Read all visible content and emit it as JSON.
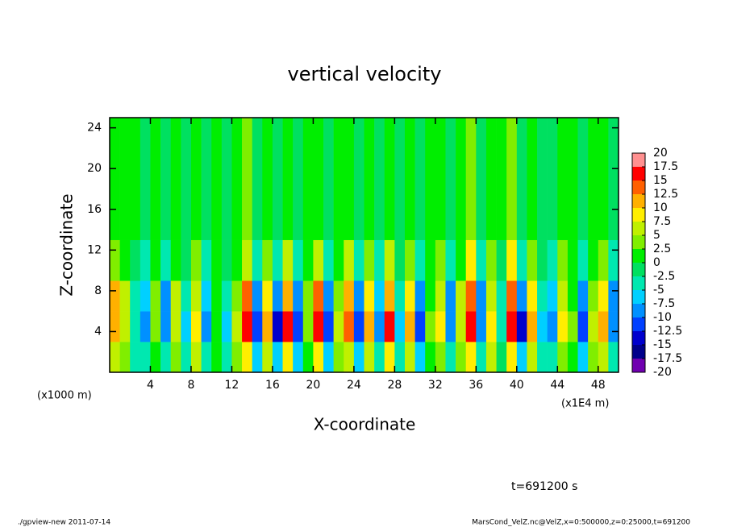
{
  "chart_data": {
    "type": "heatmap",
    "title": "vertical velocity",
    "xlabel": "X-coordinate",
    "ylabel": "Z-coordinate",
    "y_units": "(x1000 m)",
    "x_units": "(x1E4 m)",
    "time_label": "t=691200 s",
    "footer_left": "./gpview-new   2011-07-14",
    "footer_right": "MarsCond_VelZ.nc@VelZ,x=0:500000,z=0:25000,t=691200",
    "xlim": [
      0,
      50
    ],
    "ylim": [
      0,
      25
    ],
    "xticks": [
      4,
      8,
      12,
      16,
      20,
      24,
      28,
      32,
      36,
      40,
      44,
      48
    ],
    "yticks": [
      4,
      8,
      12,
      16,
      20,
      24
    ],
    "xbins": [
      0,
      1,
      2,
      3,
      4,
      5,
      6,
      7,
      8,
      9,
      10,
      11,
      12,
      13,
      14,
      15,
      16,
      17,
      18,
      19,
      20,
      21,
      22,
      23,
      24,
      25,
      26,
      27,
      28,
      29,
      30,
      31,
      32,
      33,
      34,
      35,
      36,
      37,
      38,
      39,
      40,
      41,
      42,
      43,
      44,
      45,
      46,
      47,
      48,
      49,
      50
    ],
    "ybins": [
      0,
      3,
      6,
      9,
      13,
      25
    ],
    "z": [
      [
        6,
        3,
        -3,
        -4,
        2,
        -5,
        4,
        -3,
        5,
        -5,
        1,
        -3,
        3,
        8,
        -6,
        5,
        -7,
        8,
        -6,
        2,
        8,
        -6,
        3,
        7,
        -6,
        5,
        -5,
        8,
        -3,
        6,
        -6,
        2,
        4,
        -5,
        3,
        9,
        -5,
        5,
        -2,
        9,
        -7,
        6,
        -3,
        -5,
        4,
        2,
        -6,
        3,
        5,
        -5
      ],
      [
        12,
        6,
        -5,
        -8,
        4,
        -10,
        7,
        -6,
        9,
        -9,
        2,
        -6,
        5,
        16,
        -12,
        10,
        -13,
        15,
        -12,
        4,
        16,
        -12,
        5,
        14,
        -12,
        10,
        -9,
        15,
        -6,
        11,
        -11,
        3,
        8,
        -10,
        6,
        17,
        -10,
        9,
        -4,
        17,
        -13,
        11,
        -6,
        -9,
        8,
        3,
        -11,
        5,
        10,
        -10
      ],
      [
        10,
        5,
        -4,
        -6,
        3,
        -8,
        6,
        -5,
        7,
        -7,
        2,
        -5,
        4,
        13,
        -10,
        8,
        -10,
        12,
        -10,
        3,
        13,
        -10,
        4,
        11,
        -10,
        8,
        -7,
        12,
        -5,
        9,
        -9,
        2,
        6,
        -8,
        5,
        14,
        -8,
        7,
        -3,
        14,
        -10,
        9,
        -5,
        -7,
        6,
        2,
        -9,
        4,
        8,
        -8
      ],
      [
        4,
        2,
        -2,
        -3,
        1,
        -3,
        2,
        -2,
        3,
        -3,
        1,
        -2,
        2,
        6,
        -4,
        3,
        -4,
        5,
        -4,
        1,
        6,
        -4,
        2,
        5,
        -4,
        3,
        -3,
        5,
        -2,
        4,
        -4,
        1,
        3,
        -3,
        2,
        9,
        -3,
        3,
        -1,
        8,
        -4,
        4,
        -2,
        -3,
        3,
        1,
        -4,
        2,
        3,
        -3
      ],
      [
        1,
        1,
        0,
        -1,
        0,
        -1,
        1,
        -1,
        1,
        -1,
        0,
        -1,
        1,
        3,
        -1,
        1,
        -1,
        2,
        -1,
        0,
        2,
        -1,
        0,
        2,
        -1,
        1,
        -1,
        2,
        -1,
        1,
        -1,
        0,
        1,
        -1,
        1,
        4,
        -1,
        1,
        0,
        3,
        -1,
        1,
        -1,
        -1,
        1,
        0,
        -1,
        1,
        1,
        -1
      ]
    ],
    "levels": [
      -20,
      -17.5,
      -15,
      -12.5,
      -10,
      -7.5,
      -5,
      -2.5,
      0,
      2.5,
      5,
      7.5,
      10,
      12.5,
      15,
      17.5,
      20
    ],
    "colors": [
      "#7000b0",
      "#00008b",
      "#0000cd",
      "#0040ff",
      "#0090ff",
      "#00d0ff",
      "#00e8b0",
      "#00e060",
      "#00ee00",
      "#80ee00",
      "#c0f000",
      "#ffee00",
      "#ffb000",
      "#ff6000",
      "#ff0000",
      "#ff9090"
    ]
  }
}
